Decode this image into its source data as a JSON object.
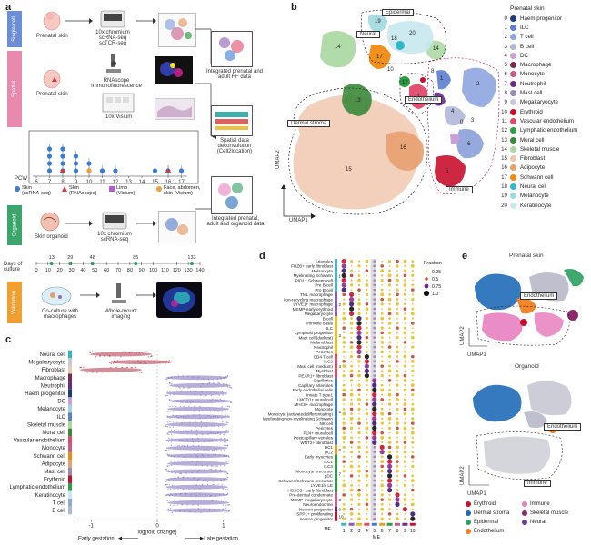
{
  "panel_letters": {
    "a": "a",
    "b": "b",
    "c": "c",
    "d": "d",
    "e": "e"
  },
  "panel_a": {
    "sections": [
      {
        "label": "Single-cell",
        "color": "#e0457b"
      },
      {
        "label": "Spatial",
        "color": "#e0457b"
      },
      {
        "label": "Organoid",
        "color": "#2e9a5a"
      },
      {
        "label": "Validation",
        "color": "#f0a030"
      }
    ],
    "prenatal_skin_1": "Prenatal skin",
    "prenatal_skin_2": "Prenatal skin",
    "skin_organoid": "Skin organoid",
    "chromium_1": [
      "10x chromium",
      "scRNA-seq",
      "scTCR-seq"
    ],
    "rnascope": [
      "RNAscope",
      "Immunofluorescence"
    ],
    "visium": "10x Visium",
    "chromium_2": [
      "10x chromium",
      "scRNA-seq"
    ],
    "coculture": [
      "Co-culture with",
      "macrophages"
    ],
    "wholemount": [
      "Whole-mount",
      "imaging"
    ],
    "out_1": [
      "Integrated prenatal and",
      "adult HF data"
    ],
    "out_2": [
      "Spatial data",
      "deconvolution",
      "(Cell2location)"
    ],
    "out_3": [
      "Integrated prenatal,",
      "adult and organoid data"
    ],
    "pcw_label": "PCW",
    "pcw_ticks": [
      "6",
      "7",
      "8",
      "9",
      "10",
      "11",
      "12",
      "13",
      "14",
      "15",
      "16",
      "17"
    ],
    "samples": [
      {
        "pcw": 7,
        "type": "skin",
        "n": 4
      },
      {
        "pcw": 8,
        "type": "skin",
        "n": 4
      },
      {
        "pcw": 9,
        "type": "skin",
        "n": 3
      },
      {
        "pcw": 10,
        "type": "skin",
        "n": 2
      },
      {
        "pcw": 11,
        "type": "skin",
        "n": 1
      },
      {
        "pcw": 12,
        "type": "skin",
        "n": 1
      },
      {
        "pcw": 15,
        "type": "skin",
        "n": 1
      },
      {
        "pcw": 16,
        "type": "skin",
        "n": 1
      },
      {
        "pcw": 17,
        "type": "skin",
        "n": 1
      },
      {
        "pcw": 8,
        "type": "rnascope",
        "n": 1
      },
      {
        "pcw": 10,
        "type": "face",
        "n": 1
      },
      {
        "pcw": 16,
        "type": "rnascope",
        "n": 1
      }
    ],
    "sample_legend": [
      {
        "label": [
          "Skin",
          "(scRNA-seq)"
        ],
        "color": "#3a7bd5",
        "shape": "circle"
      },
      {
        "label": [
          "Skin",
          "(RNAscope)"
        ],
        "color": "#d63a3a",
        "shape": "triangle"
      },
      {
        "label": [
          "Limb",
          "(Visium)"
        ],
        "color": "#b65bd1",
        "shape": "square"
      },
      {
        "label": [
          "Face, abdomen,",
          "skin (Visium)"
        ],
        "color": "#f0a030",
        "shape": "circle"
      }
    ],
    "culture_top": [
      "13",
      "29",
      "48",
      "85",
      "133"
    ],
    "culture_label": [
      "Days of",
      "culture"
    ],
    "culture_ticks": [
      "0",
      "10",
      "20",
      "30",
      "40",
      "50",
      "60",
      "70",
      "80",
      "90",
      "100",
      "110",
      "120",
      "130",
      "140"
    ]
  },
  "panel_b": {
    "title": "Prenatal skin",
    "axis_x": "UMAP1",
    "axis_y": "UMAP2",
    "legend": [
      {
        "n": "0",
        "label": "Haem progenitor",
        "color": "#1f3d7a"
      },
      {
        "n": "1",
        "label": "ILC",
        "color": "#5a7fd0"
      },
      {
        "n": "2",
        "label": "T cell",
        "color": "#8ea6e0"
      },
      {
        "n": "3",
        "label": "B cell",
        "color": "#b0b8d8"
      },
      {
        "n": "4",
        "label": "DC",
        "color": "#c9a0d8"
      },
      {
        "n": "5",
        "label": "Macrophage",
        "color": "#7a2a4a"
      },
      {
        "n": "6",
        "label": "Monocyte",
        "color": "#c95a8a"
      },
      {
        "n": "7",
        "label": "Neutrophil",
        "color": "#6a2a8a"
      },
      {
        "n": "8",
        "label": "Mast cell",
        "color": "#9a8ab8"
      },
      {
        "n": "9",
        "label": "Megakaryocyte",
        "color": "#c8c8d8"
      },
      {
        "n": "10",
        "label": "Erythroid",
        "color": "#c8102e"
      },
      {
        "n": "11",
        "label": "Vascular endothelium",
        "color": "#e04a6a"
      },
      {
        "n": "12",
        "label": "Lymphatic endothelium",
        "color": "#2aa040"
      },
      {
        "n": "13",
        "label": "Mural cell",
        "color": "#3a8a3a"
      },
      {
        "n": "14",
        "label": "Skeletal muscle",
        "color": "#a8d8a0"
      },
      {
        "n": "15",
        "label": "Fibroblast",
        "color": "#f0c8b0"
      },
      {
        "n": "16",
        "label": "Adipocyte",
        "color": "#e8a070"
      },
      {
        "n": "17",
        "label": "Schwann cell",
        "color": "#f08a10"
      },
      {
        "n": "18",
        "label": "Neural cell",
        "color": "#30b8c8"
      },
      {
        "n": "19",
        "label": "Melanocyte",
        "color": "#a0d8e0"
      },
      {
        "n": "20",
        "label": "Keratinocyte",
        "color": "#c8e8f0"
      }
    ],
    "regions": [
      "Epidermal",
      "Neural",
      "Dermal stroma",
      "Endothelium",
      "Immune"
    ],
    "cluster_labels": [
      "19",
      "20",
      "14",
      "18",
      "17",
      "14",
      "12",
      "1",
      "7",
      "8",
      "10",
      "11",
      "2",
      "13",
      "4",
      "9",
      "0",
      "3",
      "16",
      "6",
      "5",
      "15"
    ]
  },
  "panel_c": {
    "cell_types": [
      "Neural cell",
      "Megakaryocyte",
      "Fibroblast",
      "Macrophage",
      "Neutrophil",
      "Haem progenitor",
      "DC",
      "Melanocyte",
      "ILC",
      "Skeletal muscle",
      "Mural cell",
      "Vascular endothelium",
      "Monocyte",
      "Schwann cell",
      "Adipocyte",
      "Mast cell",
      "Erythroid",
      "Lymphatic endothelium",
      "Keratinocyte",
      "T cell",
      "B cell"
    ],
    "colors": [
      "#30b8c8",
      "#c8c8d8",
      "#f0c8b0",
      "#7a2a4a",
      "#6a2a8a",
      "#1f3d7a",
      "#c9a0d8",
      "#a0d8e0",
      "#5a7fd0",
      "#a8d8a0",
      "#3a8a3a",
      "#e04a6a",
      "#c95a8a",
      "#f08a10",
      "#e8a070",
      "#9a8ab8",
      "#c8102e",
      "#2aa040",
      "#c8e8f0",
      "#8ea6e0",
      "#b0b8d8"
    ],
    "centers": [
      -0.55,
      -0.25,
      -0.7,
      0.6,
      0.65,
      0.6,
      0.65,
      0.62,
      0.62,
      0.6,
      0.62,
      0.6,
      0.6,
      0.62,
      0.62,
      0.6,
      0.6,
      0.6,
      0.6,
      0.62,
      0.62
    ],
    "xlabel": "log(fold change)",
    "ticks": [
      "-1",
      "0",
      "1"
    ],
    "left_caption": "Early gestation",
    "right_caption": "Late gestation"
  },
  "panel_d": {
    "row_labels": [
      "Arterioles",
      "FRZB+ early fibroblast",
      "Melanocyte",
      "Myelinating Schwann",
      "PID1+ Schwann cell",
      "Pre B cell",
      "Pro B cell",
      "TML macrophage",
      "Iron-recycling macrophage",
      "LYVE1+ macrophage",
      "MEMP-early erythroid",
      "Megakaryocyte",
      "B cell",
      "Immune basal",
      "ILC",
      "Lymphoid progenitor",
      "Mast cell (darkest)",
      "Melanoblast",
      "Neutrophil",
      "Pericytes",
      "CD4 T cell",
      "ILC2",
      "Mast cell (medium)",
      "Myoblast",
      "PEAR1+ fibroblast",
      "Capillaries",
      "Capillary arterioles",
      "Early endothelial cells",
      "Innate T type1",
      "LMCD1+ mural cell",
      "MHCII+ macrophage",
      "Monocyte",
      "Monocyte (activated/differentiating)",
      "Myelinating/non-myelinating Schwann",
      "NK cell",
      "Pericytes",
      "PLN+ mural cell",
      "Postcapillary venules",
      "WNT2+ fibroblast",
      "DC1",
      "DC2",
      "Early myocytes",
      "ILC1",
      "ILC3",
      "Monocyte precursor",
      "pDC",
      "Schwann/Schwann precursor",
      "LYVE1hi LE",
      "HOXC5+ early fibroblast",
      "Pre-dermal condensate",
      "MEMP-megakaryocyte",
      "Neuroendocrine",
      "Neuron progenitor",
      "SPP1+ proliferating",
      "neuron progenitor"
    ],
    "me_groups": [
      "1",
      "2",
      "3",
      "4",
      "5",
      "6",
      "7",
      "8",
      "9",
      "10"
    ],
    "me_colors": [
      "#3cb8c8",
      "#8a5ab8",
      "#e8c020",
      "#e04a6a",
      "#3a7bd5",
      "#e8a020",
      "#2aa040",
      "#c95a8a",
      "#6a2a8a",
      "#c8102e"
    ],
    "group_sizes": [
      7,
      5,
      8,
      5,
      14,
      2,
      8,
      3,
      1,
      2
    ],
    "xlabel": "ME",
    "legend_title": "Fraction",
    "legend_items": [
      "0.25",
      "0.5",
      "0.75",
      "1.0"
    ]
  },
  "panel_e": {
    "top_title": "Prenatal skin",
    "bottom_title": "Organoid",
    "axis_x": "UMAP1",
    "axis_y": "UMAP2",
    "regions": [
      "Endothelium",
      "Immune"
    ],
    "legend": [
      {
        "label": "Erythroid",
        "color": "#c8102e"
      },
      {
        "label": "Immune",
        "color": "#e880c0"
      },
      {
        "label": "Dermal stroma",
        "color": "#1f6ab8"
      },
      {
        "label": "Skeletal muscle",
        "color": "#8a2a6a"
      },
      {
        "label": "Epidermal",
        "color": "#2aa060"
      },
      {
        "label": "Neural",
        "color": "#6a3a9a"
      },
      {
        "label": "Endothelium",
        "color": "#f08020"
      }
    ]
  }
}
